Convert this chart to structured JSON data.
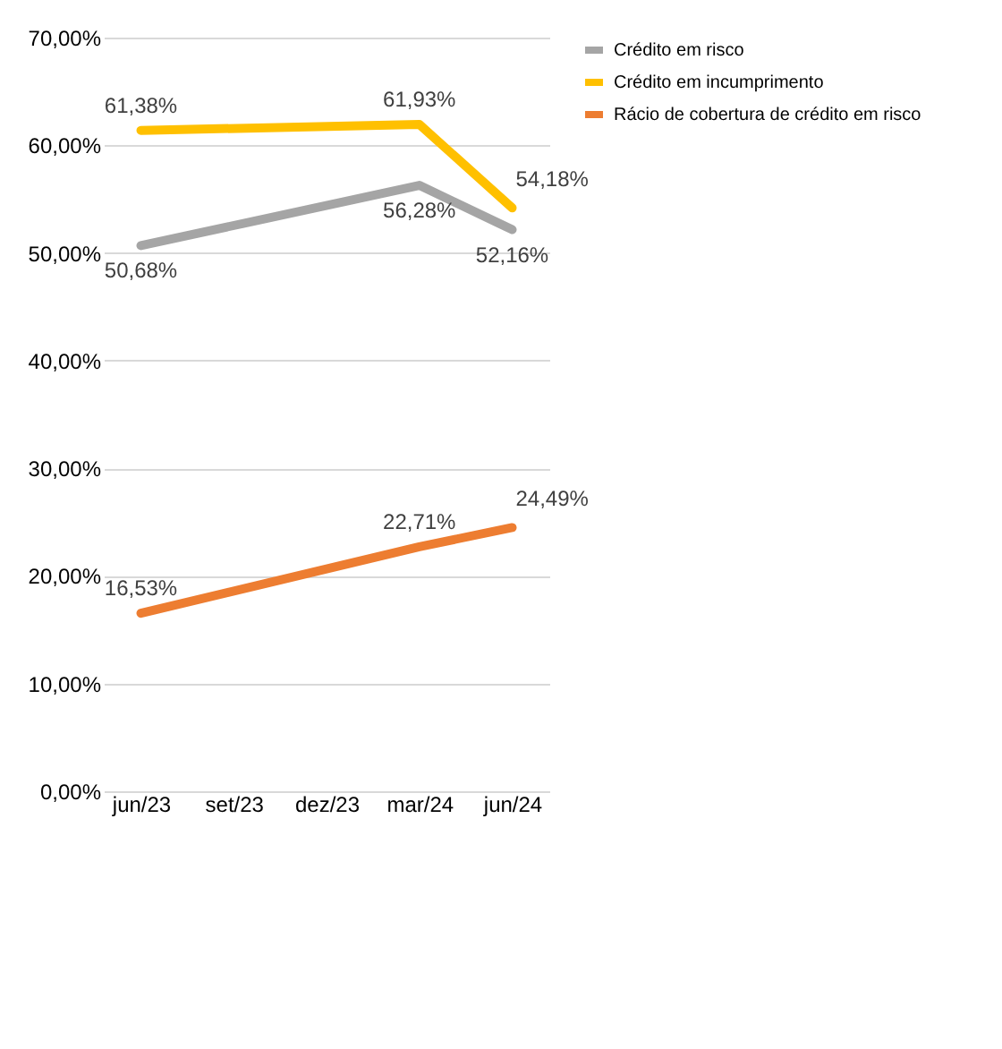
{
  "chart_data": {
    "type": "line",
    "categories": [
      "jun/23",
      "set/23",
      "dez/23",
      "mar/24",
      "jun/24"
    ],
    "series": [
      {
        "name": "Crédito em risco",
        "color": "#a5a5a5",
        "values": [
          50.68,
          null,
          null,
          56.28,
          52.16
        ],
        "value_labels": [
          "50,68%",
          null,
          null,
          "56,28%",
          "52,16%"
        ]
      },
      {
        "name": "Crédito em incumprimento",
        "color": "#ffc000",
        "values": [
          61.38,
          null,
          null,
          61.93,
          54.18
        ],
        "value_labels": [
          "61,38%",
          null,
          null,
          "61,93%",
          "54,18%"
        ]
      },
      {
        "name": "Rácio de cobertura de crédito em risco",
        "color": "#ed7d31",
        "values": [
          16.53,
          null,
          null,
          22.71,
          24.49
        ],
        "value_labels": [
          "16,53%",
          null,
          null,
          "22,71%",
          "24,49%"
        ]
      }
    ],
    "ylim": [
      0,
      70
    ],
    "yticks": [
      {
        "value": 0,
        "label": "0,00%"
      },
      {
        "value": 10,
        "label": "10,00%"
      },
      {
        "value": 20,
        "label": "20,00%"
      },
      {
        "value": 30,
        "label": "30,00%"
      },
      {
        "value": 40,
        "label": "40,00%"
      },
      {
        "value": 50,
        "label": "50,00%"
      },
      {
        "value": 60,
        "label": "60,00%"
      },
      {
        "value": 70,
        "label": "70,00%"
      }
    ],
    "grid": "y",
    "legend": "right",
    "marker": "none",
    "line_style": "solid"
  }
}
